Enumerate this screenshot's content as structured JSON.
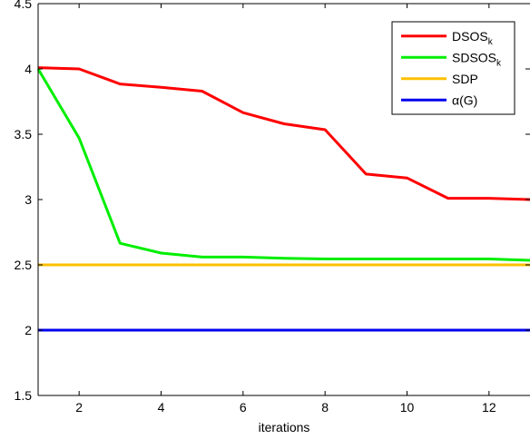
{
  "chart_data": {
    "type": "line",
    "xlabel": "iterations",
    "ylabel": "",
    "title": "",
    "xlim": [
      1,
      13
    ],
    "ylim": [
      1.5,
      4.5
    ],
    "xticks": [
      2,
      4,
      6,
      8,
      10,
      12
    ],
    "yticks": [
      1.5,
      2,
      2.5,
      3,
      3.5,
      4,
      4.5
    ],
    "xtick_labels": [
      "2",
      "4",
      "6",
      "8",
      "10",
      "12"
    ],
    "ytick_labels": [
      "1.5",
      "2",
      "2.5",
      "3",
      "3.5",
      "4",
      "4.5"
    ],
    "grid": false,
    "legend_position": "top-right",
    "series": [
      {
        "name": "DSOS",
        "subscript": "k",
        "color": "#ff0000",
        "x": [
          1,
          2,
          3,
          4,
          5,
          6,
          7,
          8,
          9,
          10,
          11,
          12,
          13
        ],
        "values": [
          4.01,
          4.0,
          3.885,
          3.86,
          3.83,
          3.665,
          3.58,
          3.535,
          3.195,
          3.165,
          3.01,
          3.01,
          3.0
        ]
      },
      {
        "name": "SDSOS",
        "subscript": "k",
        "color": "#00ee00",
        "x": [
          1,
          2,
          3,
          4,
          5,
          6,
          7,
          8,
          9,
          10,
          11,
          12,
          13
        ],
        "values": [
          4.0,
          3.47,
          2.665,
          2.59,
          2.56,
          2.56,
          2.55,
          2.545,
          2.545,
          2.545,
          2.545,
          2.545,
          2.535
        ]
      },
      {
        "name": "SDP",
        "subscript": "",
        "color": "#ffc000",
        "x": [
          1,
          13
        ],
        "values": [
          2.5,
          2.5
        ]
      },
      {
        "name": "α(G)",
        "subscript": "",
        "color": "#0000ee",
        "x": [
          1,
          13
        ],
        "values": [
          2.0,
          2.0
        ]
      }
    ]
  }
}
